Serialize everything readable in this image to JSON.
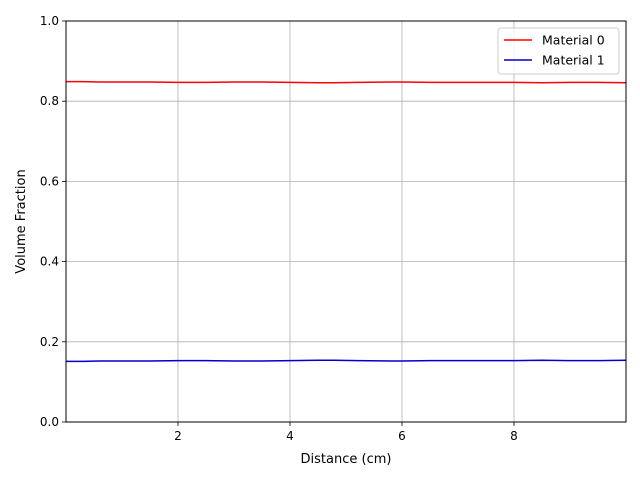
{
  "chart_data": {
    "type": "line",
    "title": "",
    "xlabel": "Distance (cm)",
    "ylabel": "Volume Fraction",
    "xlim": [
      0,
      10
    ],
    "ylim": [
      0,
      1.0
    ],
    "x_ticks": [
      2,
      4,
      6,
      8
    ],
    "x_tick_labels": [
      "2",
      "4",
      "6",
      "8"
    ],
    "y_ticks": [
      0.0,
      0.2,
      0.4,
      0.6,
      0.8,
      1.0
    ],
    "y_tick_labels": [
      "0.0",
      "0.2",
      "0.4",
      "0.6",
      "0.8",
      "1.0"
    ],
    "grid": true,
    "legend_position": "top-right",
    "x": [
      0.0,
      0.3,
      0.6,
      1.0,
      1.5,
      2.0,
      2.5,
      3.0,
      3.5,
      4.0,
      4.5,
      4.8,
      5.2,
      5.8,
      6.0,
      6.5,
      7.0,
      7.5,
      8.0,
      8.5,
      9.0,
      9.5,
      10.0
    ],
    "series": [
      {
        "name": "Material 0",
        "color": "#ff0000",
        "values": [
          0.849,
          0.849,
          0.848,
          0.848,
          0.848,
          0.847,
          0.847,
          0.848,
          0.848,
          0.847,
          0.846,
          0.846,
          0.847,
          0.848,
          0.848,
          0.847,
          0.847,
          0.847,
          0.847,
          0.846,
          0.847,
          0.847,
          0.846
        ]
      },
      {
        "name": "Material 1",
        "color": "#0000cc",
        "values": [
          0.151,
          0.151,
          0.152,
          0.152,
          0.152,
          0.153,
          0.153,
          0.152,
          0.152,
          0.153,
          0.154,
          0.154,
          0.153,
          0.152,
          0.152,
          0.153,
          0.153,
          0.153,
          0.153,
          0.154,
          0.153,
          0.153,
          0.154
        ]
      }
    ]
  }
}
